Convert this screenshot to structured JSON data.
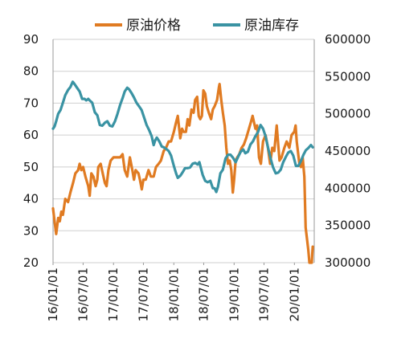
{
  "chart_data": {
    "type": "line",
    "title": "",
    "xlabel": "",
    "ylabel_left": "",
    "ylabel_right": "",
    "x_ticks": [
      "16/01/01",
      "16/07/01",
      "17/01/01",
      "17/07/01",
      "18/01/01",
      "18/07/01",
      "19/01/01",
      "19/07/01",
      "20/01/01"
    ],
    "y_left_ticks": [
      "20",
      "30",
      "40",
      "50",
      "60",
      "70",
      "80",
      "90"
    ],
    "y_right_ticks": [
      "300000",
      "350000",
      "400000",
      "450000",
      "500000",
      "550000",
      "600000"
    ],
    "ylim_left": [
      20,
      90
    ],
    "ylim_right": [
      300000,
      600000
    ],
    "xlim": [
      "2016-01-01",
      "2020-04-30"
    ],
    "legend_position": "top",
    "grid": "horizontal",
    "series": [
      {
        "name": "原油价格",
        "axis": "left",
        "color": "#e07b22",
        "points": [
          [
            "2016-01-01",
            37
          ],
          [
            "2016-01-10",
            33
          ],
          [
            "2016-01-20",
            29
          ],
          [
            "2016-02-01",
            34
          ],
          [
            "2016-02-11",
            33
          ],
          [
            "2016-02-20",
            36
          ],
          [
            "2016-03-01",
            35
          ],
          [
            "2016-03-15",
            40
          ],
          [
            "2016-04-01",
            39
          ],
          [
            "2016-04-15",
            42
          ],
          [
            "2016-05-01",
            45
          ],
          [
            "2016-05-15",
            48
          ],
          [
            "2016-06-01",
            49
          ],
          [
            "2016-06-10",
            51
          ],
          [
            "2016-06-20",
            49
          ],
          [
            "2016-07-01",
            50
          ],
          [
            "2016-07-15",
            47
          ],
          [
            "2016-08-01",
            44
          ],
          [
            "2016-08-10",
            41
          ],
          [
            "2016-08-20",
            48
          ],
          [
            "2016-09-01",
            47
          ],
          [
            "2016-09-15",
            44
          ],
          [
            "2016-09-25",
            46
          ],
          [
            "2016-10-01",
            50
          ],
          [
            "2016-10-15",
            51
          ],
          [
            "2016-11-01",
            47
          ],
          [
            "2016-11-10",
            45
          ],
          [
            "2016-11-20",
            44
          ],
          [
            "2016-12-01",
            49
          ],
          [
            "2016-12-15",
            52
          ],
          [
            "2017-01-01",
            53
          ],
          [
            "2017-01-20",
            53
          ],
          [
            "2017-02-10",
            53
          ],
          [
            "2017-02-25",
            54
          ],
          [
            "2017-03-10",
            49
          ],
          [
            "2017-03-25",
            47
          ],
          [
            "2017-04-10",
            53
          ],
          [
            "2017-04-25",
            49
          ],
          [
            "2017-05-05",
            46
          ],
          [
            "2017-05-15",
            49
          ],
          [
            "2017-06-01",
            48
          ],
          [
            "2017-06-10",
            46
          ],
          [
            "2017-06-21",
            43
          ],
          [
            "2017-07-01",
            46
          ],
          [
            "2017-07-15",
            46
          ],
          [
            "2017-08-01",
            49
          ],
          [
            "2017-08-15",
            47
          ],
          [
            "2017-09-01",
            47
          ],
          [
            "2017-09-15",
            50
          ],
          [
            "2017-10-01",
            51
          ],
          [
            "2017-10-15",
            52
          ],
          [
            "2017-11-01",
            55
          ],
          [
            "2017-11-15",
            56
          ],
          [
            "2017-12-01",
            58
          ],
          [
            "2017-12-15",
            58
          ],
          [
            "2018-01-01",
            61
          ],
          [
            "2018-01-15",
            64
          ],
          [
            "2018-01-25",
            66
          ],
          [
            "2018-02-09",
            59
          ],
          [
            "2018-02-20",
            62
          ],
          [
            "2018-03-01",
            61
          ],
          [
            "2018-03-15",
            61
          ],
          [
            "2018-03-26",
            65
          ],
          [
            "2018-04-05",
            63
          ],
          [
            "2018-04-18",
            68
          ],
          [
            "2018-05-01",
            67
          ],
          [
            "2018-05-10",
            71
          ],
          [
            "2018-05-22",
            72
          ],
          [
            "2018-06-01",
            66
          ],
          [
            "2018-06-10",
            65
          ],
          [
            "2018-06-20",
            66
          ],
          [
            "2018-06-29",
            74
          ],
          [
            "2018-07-10",
            73
          ],
          [
            "2018-07-20",
            69
          ],
          [
            "2018-08-01",
            67
          ],
          [
            "2018-08-15",
            65
          ],
          [
            "2018-08-25",
            68
          ],
          [
            "2018-09-05",
            69
          ],
          [
            "2018-09-20",
            71
          ],
          [
            "2018-10-01",
            75
          ],
          [
            "2018-10-05",
            76
          ],
          [
            "2018-10-15",
            71
          ],
          [
            "2018-10-25",
            67
          ],
          [
            "2018-11-05",
            63
          ],
          [
            "2018-11-15",
            56
          ],
          [
            "2018-11-25",
            51
          ],
          [
            "2018-12-05",
            52
          ],
          [
            "2018-12-15",
            49
          ],
          [
            "2018-12-24",
            42
          ],
          [
            "2019-01-01",
            46
          ],
          [
            "2019-01-10",
            52
          ],
          [
            "2019-01-20",
            53
          ],
          [
            "2019-02-01",
            54
          ],
          [
            "2019-02-15",
            56
          ],
          [
            "2019-03-01",
            57
          ],
          [
            "2019-03-15",
            59
          ],
          [
            "2019-04-01",
            62
          ],
          [
            "2019-04-12",
            64
          ],
          [
            "2019-04-23",
            66
          ],
          [
            "2019-05-10",
            62
          ],
          [
            "2019-05-20",
            63
          ],
          [
            "2019-06-01",
            53
          ],
          [
            "2019-06-12",
            51
          ],
          [
            "2019-06-25",
            58
          ],
          [
            "2019-07-10",
            60
          ],
          [
            "2019-07-25",
            56
          ],
          [
            "2019-08-07",
            51
          ],
          [
            "2019-08-20",
            56
          ],
          [
            "2019-09-01",
            55
          ],
          [
            "2019-09-16",
            63
          ],
          [
            "2019-09-25",
            57
          ],
          [
            "2019-10-03",
            52
          ],
          [
            "2019-10-15",
            53
          ],
          [
            "2019-11-01",
            56
          ],
          [
            "2019-11-15",
            58
          ],
          [
            "2019-12-01",
            56
          ],
          [
            "2019-12-15",
            60
          ],
          [
            "2019-12-31",
            61
          ],
          [
            "2020-01-08",
            63
          ],
          [
            "2020-01-15",
            58
          ],
          [
            "2020-01-31",
            51
          ],
          [
            "2020-02-10",
            50
          ],
          [
            "2020-02-20",
            53
          ],
          [
            "2020-03-01",
            47
          ],
          [
            "2020-03-09",
            31
          ],
          [
            "2020-03-18",
            27
          ],
          [
            "2020-03-25",
            24
          ],
          [
            "2020-04-01",
            20
          ],
          [
            "2020-04-15",
            20
          ],
          [
            "2020-04-21",
            25
          ]
        ]
      },
      {
        "name": "原油库存",
        "axis": "right",
        "color": "#3a93a3",
        "points": [
          [
            "2016-01-01",
            480000
          ],
          [
            "2016-01-10",
            483000
          ],
          [
            "2016-01-20",
            490000
          ],
          [
            "2016-02-01",
            500000
          ],
          [
            "2016-02-15",
            505000
          ],
          [
            "2016-03-01",
            515000
          ],
          [
            "2016-03-15",
            525000
          ],
          [
            "2016-04-01",
            532000
          ],
          [
            "2016-04-15",
            536000
          ],
          [
            "2016-04-29",
            543000
          ],
          [
            "2016-05-10",
            540000
          ],
          [
            "2016-05-25",
            535000
          ],
          [
            "2016-06-10",
            530000
          ],
          [
            "2016-06-25",
            520000
          ],
          [
            "2016-07-10",
            520000
          ],
          [
            "2016-07-20",
            518000
          ],
          [
            "2016-08-01",
            520000
          ],
          [
            "2016-08-10",
            518000
          ],
          [
            "2016-08-25",
            515000
          ],
          [
            "2016-09-10",
            502000
          ],
          [
            "2016-09-25",
            498000
          ],
          [
            "2016-10-10",
            485000
          ],
          [
            "2016-10-25",
            484000
          ],
          [
            "2016-11-10",
            488000
          ],
          [
            "2016-11-25",
            490000
          ],
          [
            "2016-12-10",
            484000
          ],
          [
            "2016-12-25",
            483000
          ],
          [
            "2017-01-10",
            490000
          ],
          [
            "2017-01-25",
            500000
          ],
          [
            "2017-02-10",
            512000
          ],
          [
            "2017-02-25",
            521000
          ],
          [
            "2017-03-10",
            530000
          ],
          [
            "2017-03-25",
            535000
          ],
          [
            "2017-04-05",
            533000
          ],
          [
            "2017-04-20",
            528000
          ],
          [
            "2017-05-05",
            522000
          ],
          [
            "2017-05-20",
            515000
          ],
          [
            "2017-06-05",
            510000
          ],
          [
            "2017-06-20",
            505000
          ],
          [
            "2017-07-05",
            495000
          ],
          [
            "2017-07-20",
            485000
          ],
          [
            "2017-08-05",
            478000
          ],
          [
            "2017-08-20",
            470000
          ],
          [
            "2017-09-01",
            458000
          ],
          [
            "2017-09-10",
            464000
          ],
          [
            "2017-09-20",
            468000
          ],
          [
            "2017-10-05",
            463000
          ],
          [
            "2017-10-20",
            456000
          ],
          [
            "2017-11-01",
            455000
          ],
          [
            "2017-11-15",
            453000
          ],
          [
            "2017-12-01",
            450000
          ],
          [
            "2017-12-15",
            444000
          ],
          [
            "2018-01-01",
            430000
          ],
          [
            "2018-01-15",
            420000
          ],
          [
            "2018-01-25",
            414000
          ],
          [
            "2018-02-10",
            417000
          ],
          [
            "2018-02-25",
            422000
          ],
          [
            "2018-03-10",
            427000
          ],
          [
            "2018-03-25",
            427000
          ],
          [
            "2018-04-10",
            428000
          ],
          [
            "2018-04-25",
            433000
          ],
          [
            "2018-05-10",
            434000
          ],
          [
            "2018-05-25",
            432000
          ],
          [
            "2018-06-05",
            435000
          ],
          [
            "2018-06-15",
            426000
          ],
          [
            "2018-06-25",
            418000
          ],
          [
            "2018-07-10",
            410000
          ],
          [
            "2018-07-25",
            408000
          ],
          [
            "2018-08-10",
            410000
          ],
          [
            "2018-08-25",
            400000
          ],
          [
            "2018-09-05",
            400000
          ],
          [
            "2018-09-15",
            395000
          ],
          [
            "2018-09-25",
            402000
          ],
          [
            "2018-10-10",
            420000
          ],
          [
            "2018-10-25",
            425000
          ],
          [
            "2018-11-10",
            440000
          ],
          [
            "2018-11-25",
            445000
          ],
          [
            "2018-12-10",
            445000
          ],
          [
            "2018-12-25",
            441000
          ],
          [
            "2019-01-10",
            435000
          ],
          [
            "2019-01-25",
            442000
          ],
          [
            "2019-02-10",
            449000
          ],
          [
            "2019-02-25",
            452000
          ],
          [
            "2019-03-10",
            447000
          ],
          [
            "2019-03-25",
            449000
          ],
          [
            "2019-04-10",
            459000
          ],
          [
            "2019-04-25",
            463000
          ],
          [
            "2019-05-10",
            470000
          ],
          [
            "2019-05-25",
            475000
          ],
          [
            "2019-06-10",
            485000
          ],
          [
            "2019-06-25",
            480000
          ],
          [
            "2019-07-10",
            470000
          ],
          [
            "2019-07-25",
            455000
          ],
          [
            "2019-08-10",
            440000
          ],
          [
            "2019-08-25",
            428000
          ],
          [
            "2019-09-10",
            420000
          ],
          [
            "2019-09-25",
            421000
          ],
          [
            "2019-10-10",
            425000
          ],
          [
            "2019-10-25",
            435000
          ],
          [
            "2019-11-10",
            442000
          ],
          [
            "2019-11-25",
            448000
          ],
          [
            "2019-12-10",
            450000
          ],
          [
            "2019-12-25",
            444000
          ],
          [
            "2020-01-10",
            430000
          ],
          [
            "2020-01-25",
            430000
          ],
          [
            "2020-02-10",
            437000
          ],
          [
            "2020-02-25",
            445000
          ],
          [
            "2020-03-10",
            451000
          ],
          [
            "2020-03-25",
            454000
          ],
          [
            "2020-04-10",
            458000
          ],
          [
            "2020-04-21",
            455000
          ]
        ]
      }
    ]
  }
}
